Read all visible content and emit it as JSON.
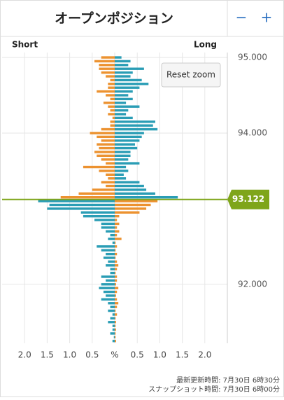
{
  "chart_data": {
    "type": "bar",
    "title": "オープンポジション",
    "zoom_out": "−",
    "zoom_in": "+",
    "reset": "Reset zoom",
    "updated": "最新更新時間: 7月30日 6時30分",
    "snapshot": "スナップショット時間: 7月30日 6時00分",
    "y": [
      95,
      94.95,
      94.9,
      94.85,
      94.8,
      94.75,
      94.7,
      94.65,
      94.6,
      94.55,
      94.5,
      94.45,
      94.4,
      94.35,
      94.3,
      94.25,
      94.2,
      94.15,
      94.1,
      94.05,
      94,
      93.95,
      93.9,
      93.85,
      93.8,
      93.75,
      93.7,
      93.65,
      93.6,
      93.55,
      93.5,
      93.45,
      93.4,
      93.35,
      93.3,
      93.25,
      93.2,
      93.15,
      93.1,
      93.05,
      93,
      92.95,
      92.9,
      92.85,
      92.8,
      92.75,
      92.7,
      92.65,
      92.6,
      92.55,
      92.5,
      92.45,
      92.4,
      92.35,
      92.3,
      92.25,
      92.2,
      92.15,
      92.1,
      92.05,
      92,
      91.95,
      91.9,
      91.85,
      91.8,
      91.75,
      91.7,
      91.65,
      91.6,
      91.55,
      91.5,
      91.45,
      91.4,
      91.35,
      91.3,
      91.25
    ],
    "series": [
      {
        "name": "Short",
        "color": "#ec9230",
        "color_below": "#2a9db5",
        "values": [
          0.3,
          0.45,
          0.35,
          0.35,
          0.3,
          0.2,
          0.1,
          0.15,
          0.15,
          0.4,
          0.2,
          0.1,
          0.25,
          0.15,
          0.1,
          0.15,
          0.05,
          0.1,
          0.1,
          0.3,
          0.55,
          0.4,
          0.3,
          0.4,
          0.35,
          0.45,
          0.4,
          0.3,
          0.2,
          0.7,
          0.35,
          0.2,
          0.15,
          0.3,
          0.2,
          0.5,
          0.8,
          1.2,
          1.7,
          1.45,
          1.5,
          0.75,
          0.7,
          0.45,
          0.3,
          0.3,
          0.2,
          0.1,
          0.15,
          0.05,
          0.4,
          0.3,
          0.2,
          0.25,
          0.15,
          0.2,
          0.1,
          0.1,
          0.3,
          0.2,
          0.3,
          0.35,
          0.25,
          0.2,
          0.3,
          0.15,
          0.1,
          0.15,
          0.05,
          0.1,
          0.15,
          0.05,
          0.05,
          0.1,
          0.02,
          0.05
        ]
      },
      {
        "name": "Long",
        "color": "#2a9db5",
        "color_below": "#ec9230",
        "values": [
          0.15,
          0.35,
          0.3,
          0.65,
          0.4,
          0.35,
          0.6,
          0.75,
          0.55,
          0.4,
          0.3,
          0.4,
          0.25,
          0.55,
          0.3,
          0.25,
          0.4,
          0.9,
          0.85,
          0.95,
          0.65,
          0.6,
          0.55,
          0.45,
          0.5,
          0.35,
          0.35,
          0.3,
          0.55,
          0.25,
          0.3,
          0.2,
          0.25,
          0.55,
          0.65,
          0.7,
          0.9,
          1.4,
          0.95,
          0.8,
          0.7,
          0.55,
          0.1,
          0.05,
          0.1,
          0.05,
          0.1,
          0.05,
          0.15,
          0.02,
          0.05,
          0.02,
          0.05,
          0.02,
          0.05,
          0.08,
          0.05,
          0.02,
          0.05,
          0.05,
          0.03,
          0.08,
          0.05,
          0.03,
          0.05,
          0.08,
          0.05,
          0.02,
          0.05,
          0.02,
          0.03,
          0.02,
          0.03,
          0.02,
          0.02,
          0.03
        ]
      }
    ],
    "current_price": 93.122,
    "price_color": "#7fa51b",
    "xlim": [
      -2.5,
      2.5
    ],
    "xticks": [
      {
        "value": -2,
        "label": "2.0"
      },
      {
        "value": -1.5,
        "label": "1.5"
      },
      {
        "value": -1,
        "label": "1.0"
      },
      {
        "value": -0.5,
        "label": "0.5"
      },
      {
        "value": 0,
        "label": "%"
      },
      {
        "value": 0.5,
        "label": "0.5"
      },
      {
        "value": 1,
        "label": "1.0"
      },
      {
        "value": 1.5,
        "label": "1.5"
      },
      {
        "value": 2,
        "label": "2.0"
      }
    ],
    "ylim": [
      91.22,
      95.065
    ],
    "yticks": [
      {
        "value": 95,
        "label": "95.000"
      },
      {
        "value": 94,
        "label": "94.000"
      },
      {
        "value": 92,
        "label": "92.000"
      }
    ],
    "grid": true
  }
}
